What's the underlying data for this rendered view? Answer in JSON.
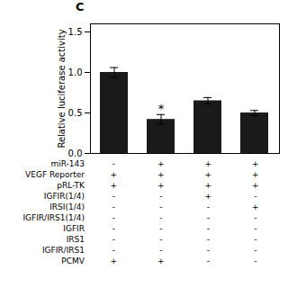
{
  "chart_data": {
    "type": "bar",
    "title": "C",
    "ylabel": "Relative luciferase activity",
    "categories": [
      null,
      null,
      null,
      null
    ],
    "values": [
      1.0,
      0.42,
      0.65,
      0.5
    ],
    "errors": [
      0.06,
      0.06,
      0.04,
      0.03
    ],
    "color": "#1a1a1a",
    "ylim": [
      0,
      1.6
    ],
    "yticks": [
      {
        "value": 0,
        "label": "0.0"
      },
      0.5,
      {
        "value": 1,
        "label": "1.0"
      },
      1.5
    ],
    "grid": false,
    "significance": [
      null,
      "*",
      null,
      null
    ],
    "table_rows": [
      [
        "miR-143",
        "-",
        "+",
        "+",
        "+"
      ],
      [
        "VEGF Reporter",
        "+",
        "+",
        "+",
        "+"
      ],
      [
        "pRL-TK",
        "+",
        "+",
        "+",
        "+"
      ],
      [
        "IGFIR(1/4)",
        "-",
        "-",
        "+",
        "-"
      ],
      [
        "IRSI(1/4)",
        "-",
        "-",
        "-",
        "+"
      ],
      [
        "IGFIR/IRS1(1/4)",
        "-",
        "-",
        "-",
        "-"
      ],
      [
        "IGFIR",
        "-",
        "-",
        "-",
        "-"
      ],
      [
        "IRS1",
        "-",
        "-",
        "-",
        "-"
      ],
      [
        "IGFIR/IRS1",
        "-",
        "-",
        "-",
        "-"
      ],
      [
        "PCMV",
        "+",
        "+",
        "-",
        "-"
      ]
    ]
  }
}
